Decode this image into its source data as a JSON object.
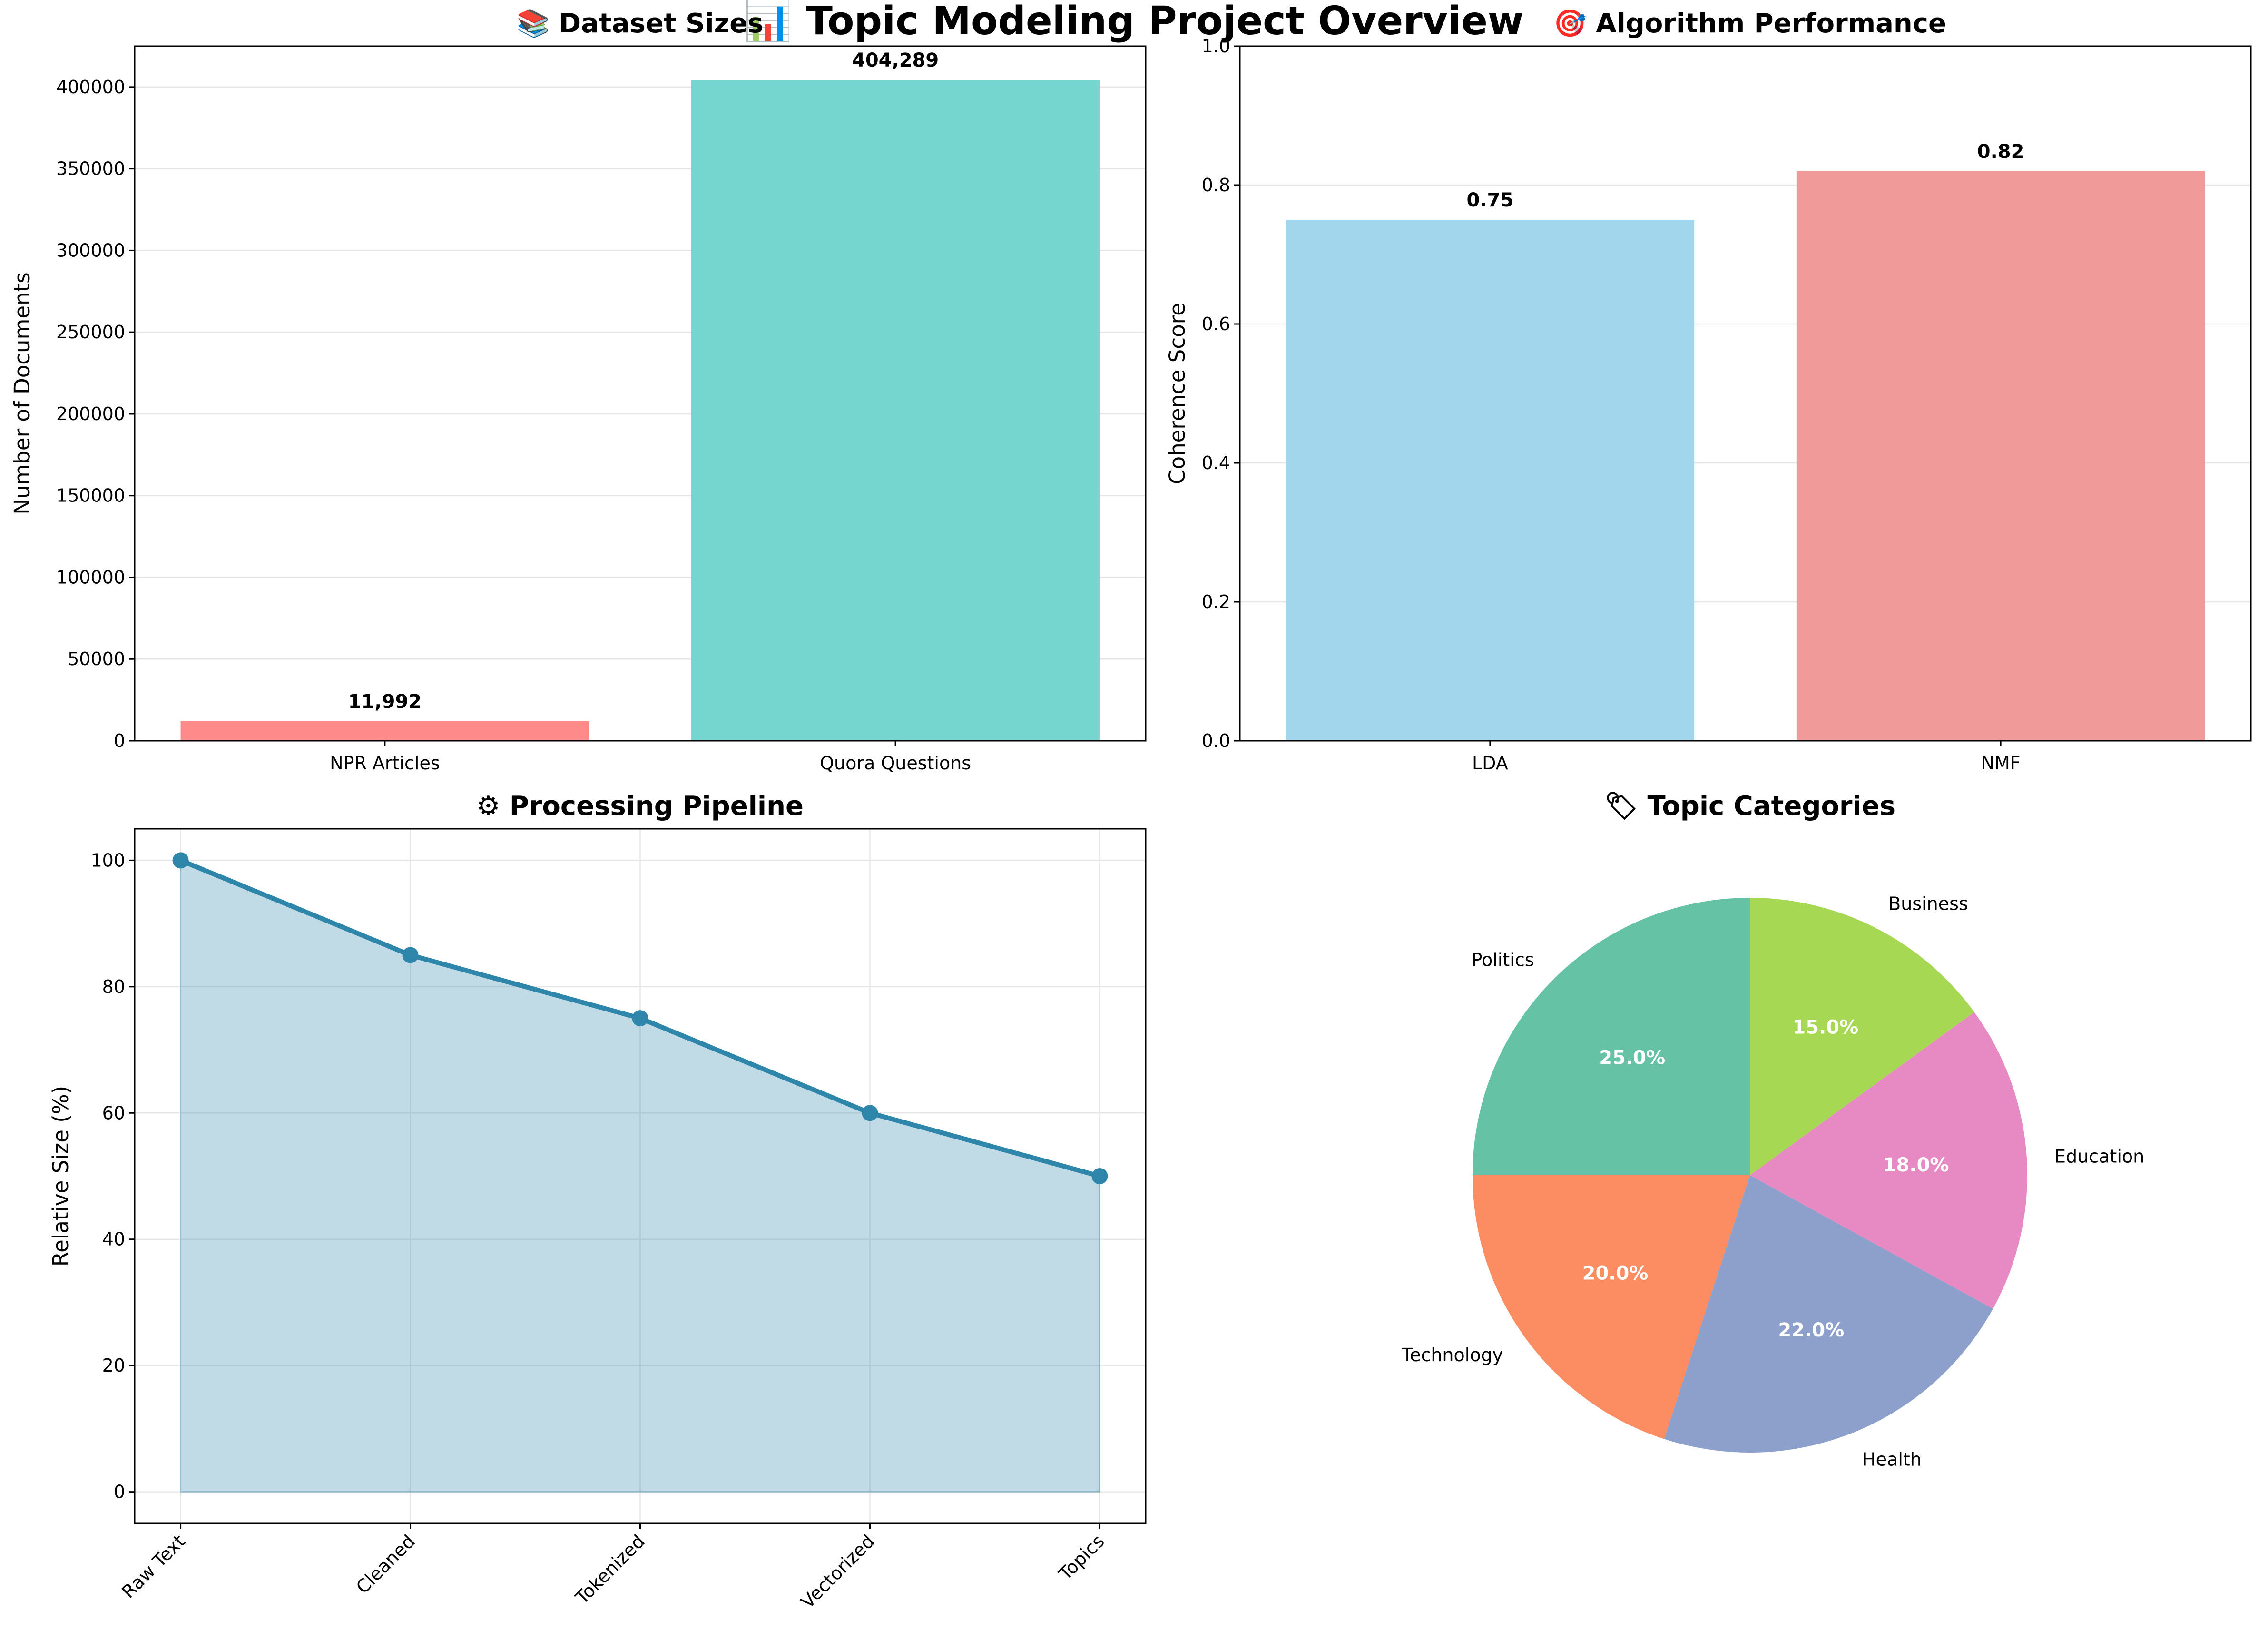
{
  "figure": {
    "title": "📊 Topic Modeling Project Overview"
  },
  "chart_data": [
    {
      "type": "bar",
      "title": "📚 Dataset Sizes",
      "xlabel": "",
      "ylabel": "Number of Documents",
      "categories": [
        "NPR Articles",
        "Quora Questions"
      ],
      "values": [
        11992,
        404289
      ],
      "value_labels": [
        "11,992",
        "404,289"
      ],
      "colors": [
        "#ff8a8a",
        "#74d6ce"
      ],
      "ylim": [
        0,
        425000
      ],
      "yticks": [
        0,
        50000,
        100000,
        150000,
        200000,
        250000,
        300000,
        350000,
        400000
      ],
      "ytick_labels": [
        "0",
        "50000",
        "100000",
        "150000",
        "200000",
        "250000",
        "300000",
        "350000",
        "400000"
      ],
      "grid": "y"
    },
    {
      "type": "bar",
      "title": "🎯 Algorithm Performance",
      "xlabel": "",
      "ylabel": "Coherence Score",
      "categories": [
        "LDA",
        "NMF"
      ],
      "values": [
        0.75,
        0.82
      ],
      "value_labels": [
        "0.75",
        "0.82"
      ],
      "colors": [
        "#a2d6ec",
        "#f19a9a"
      ],
      "ylim": [
        0,
        1.0
      ],
      "yticks": [
        0,
        0.2,
        0.4,
        0.6,
        0.8,
        1.0
      ],
      "ytick_labels": [
        "0.0",
        "0.2",
        "0.4",
        "0.6",
        "0.8",
        "1.0"
      ],
      "grid": "y"
    },
    {
      "type": "area",
      "title": "⚙ Processing Pipeline",
      "xlabel": "",
      "ylabel": "Relative Size (%)",
      "categories": [
        "Raw Text",
        "Cleaned",
        "Tokenized",
        "Vectorized",
        "Topics"
      ],
      "values": [
        100,
        85,
        75,
        60,
        50
      ],
      "line_color": "#2e86ab",
      "fill_color": "#c0d9e4",
      "ylim": [
        -5,
        105
      ],
      "yticks": [
        0,
        20,
        40,
        60,
        80,
        100
      ],
      "ytick_labels": [
        "0",
        "20",
        "40",
        "60",
        "80",
        "100"
      ],
      "grid": "both"
    },
    {
      "type": "pie",
      "title": "🏷 Topic Categories",
      "labels": [
        "Politics",
        "Technology",
        "Health",
        "Education",
        "Business"
      ],
      "values": [
        25,
        20,
        22,
        18,
        15
      ],
      "pct_labels": [
        "25.0%",
        "20.0%",
        "22.0%",
        "18.0%",
        "15.0%"
      ],
      "colors": [
        "#66c2a5",
        "#fc8d62",
        "#8da0cb",
        "#e78ac3",
        "#a6d854"
      ]
    }
  ]
}
